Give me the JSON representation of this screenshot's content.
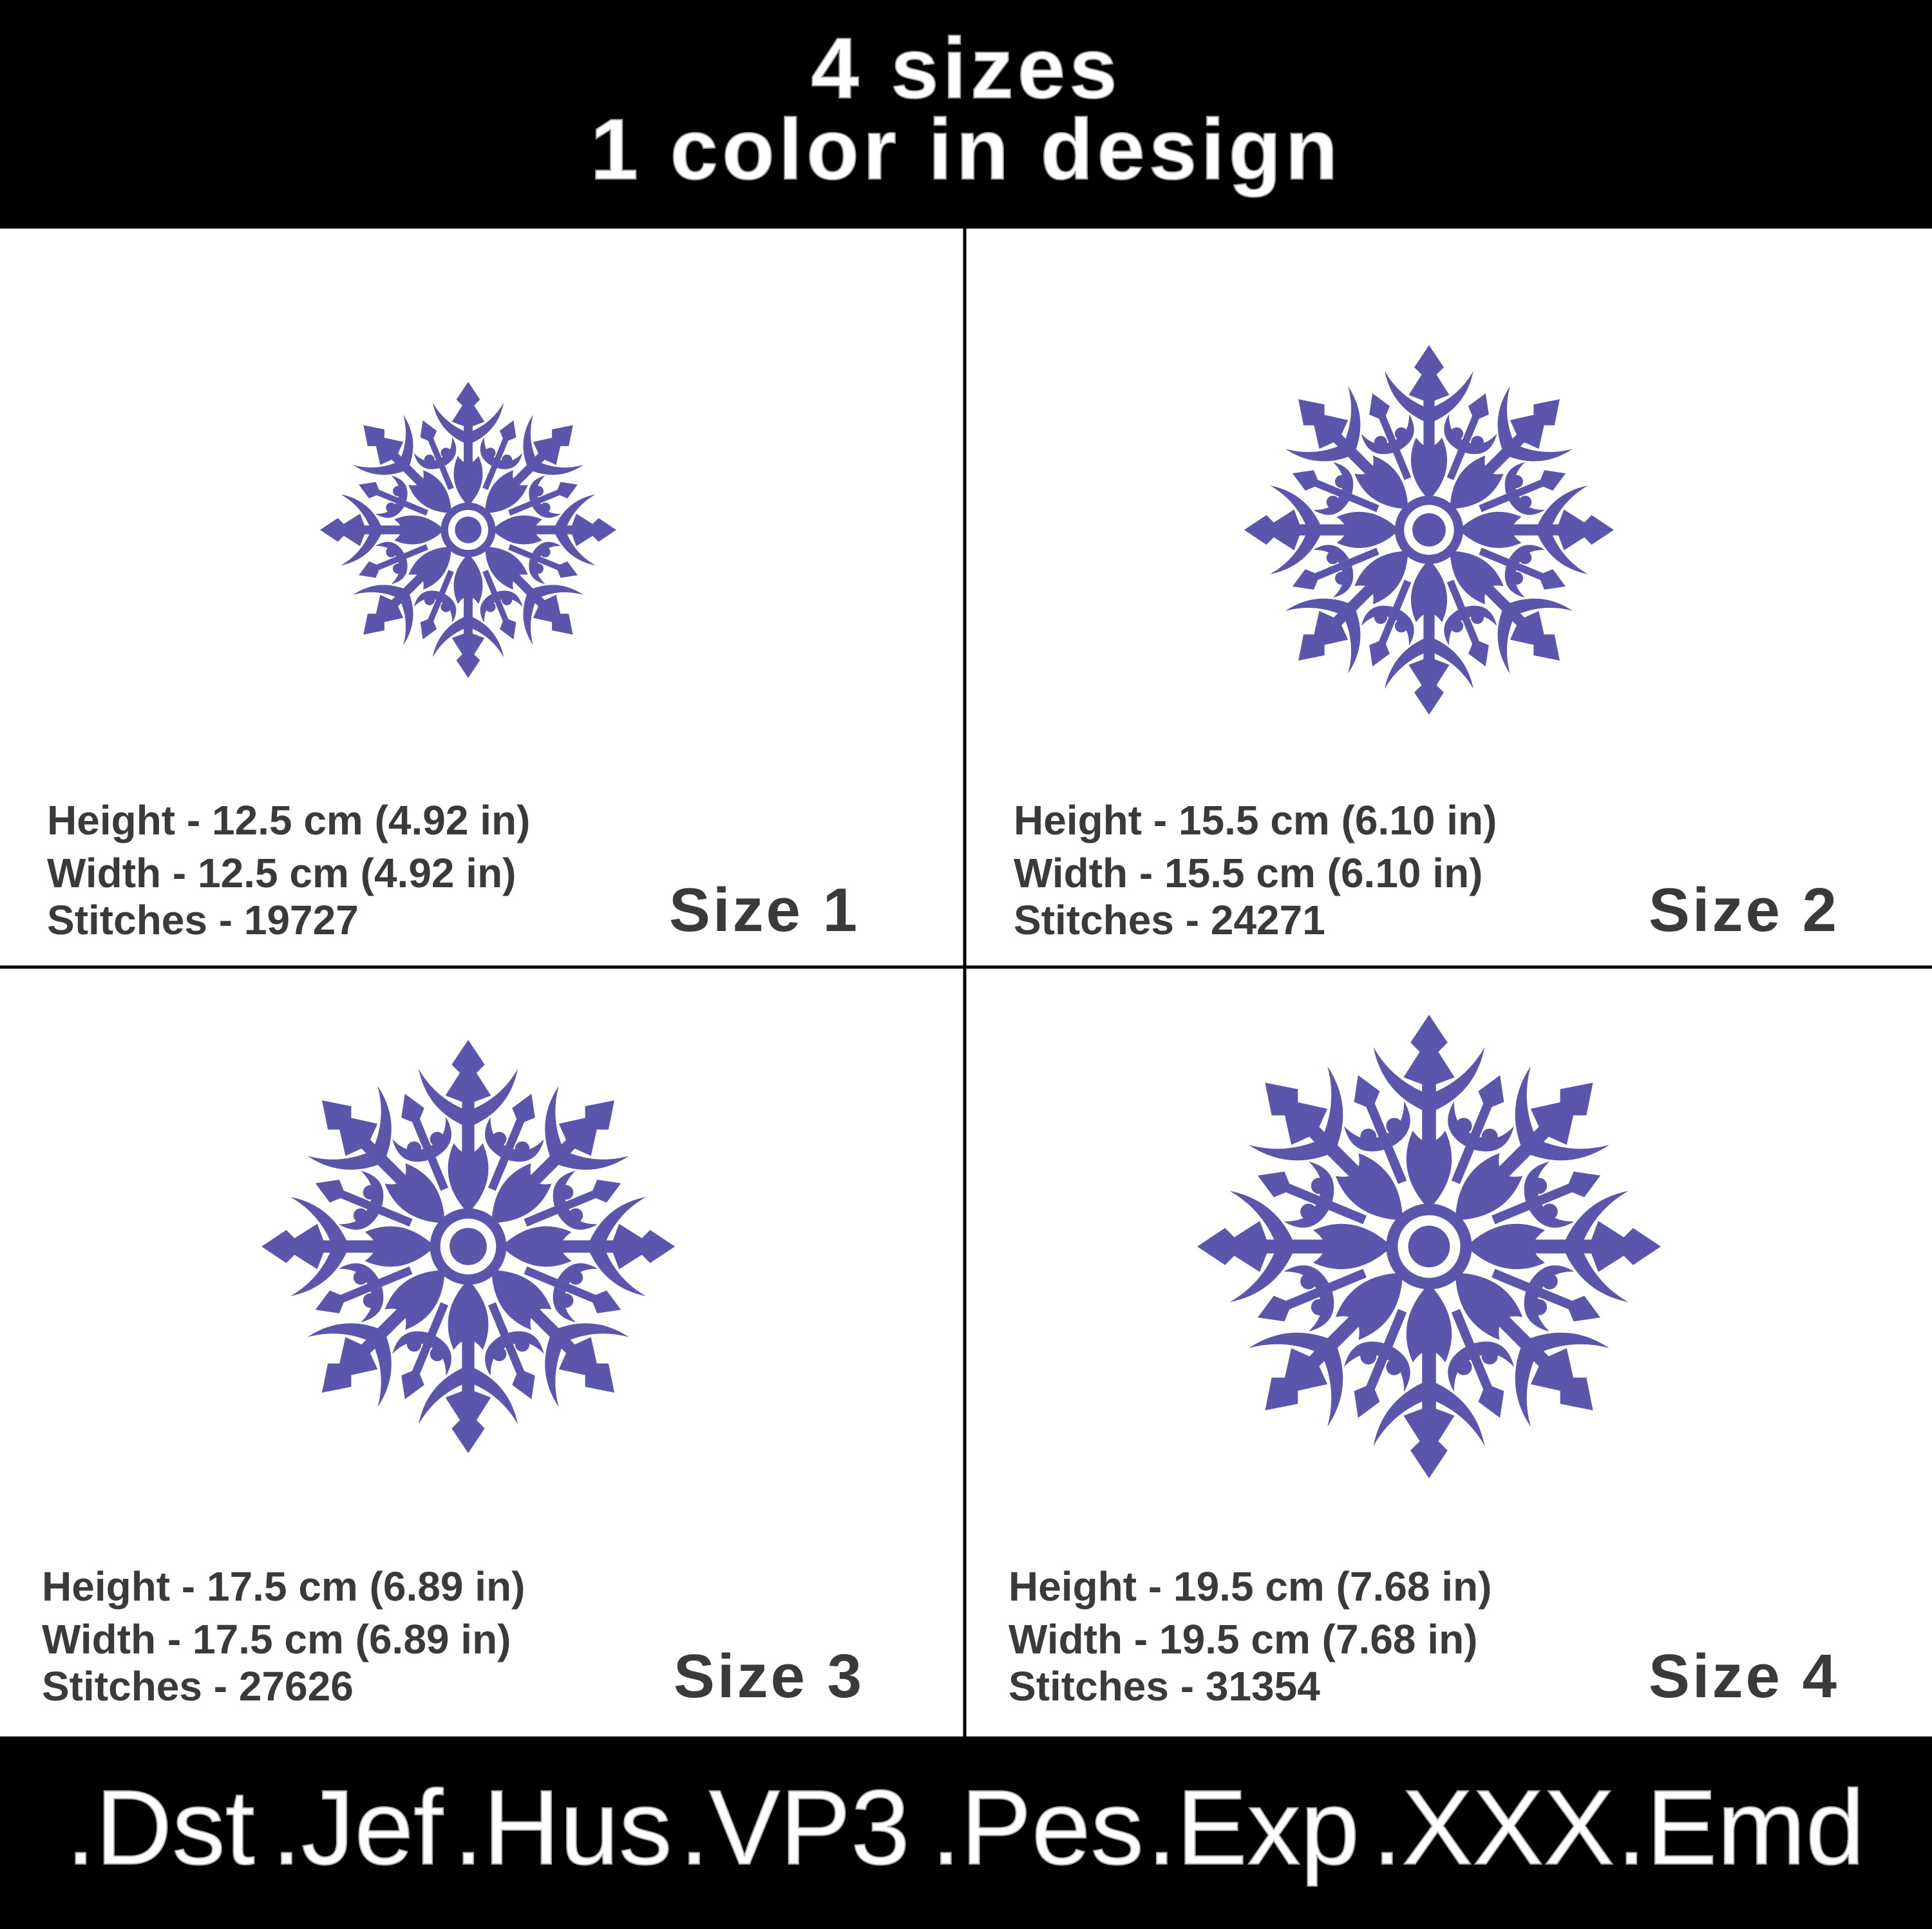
{
  "header": {
    "lines": [
      "4 sizes",
      "1 color in design"
    ]
  },
  "panels": [
    {
      "lines": [
        "Height - 12.5 cm (4.92 in)",
        "Width - 12.5 cm (4.92 in)",
        "Stitches - 19727"
      ],
      "size_label": "Size 1"
    },
    {
      "lines": [
        "Height - 15.5 cm (6.10 in)",
        "Width - 15.5 cm (6.10 in)",
        "Stitches - 24271"
      ],
      "size_label": "Size 2"
    },
    {
      "lines": [
        "Height - 17.5 cm (6.89 in)",
        "Width - 17.5 cm (6.89 in)",
        "Stitches - 27626"
      ],
      "size_label": "Size 3"
    },
    {
      "lines": [
        "Height - 19.5 cm (7.68 in)",
        "Width - 19.5 cm (7.68 in)",
        "Stitches - 31354"
      ],
      "size_label": "Size 4"
    }
  ],
  "footer": {
    "formats": [
      ".Dst",
      ".Jef",
      ".Hus",
      ".VP3",
      ".Pes",
      ".Exp",
      ".XXX",
      ".Emd"
    ]
  }
}
